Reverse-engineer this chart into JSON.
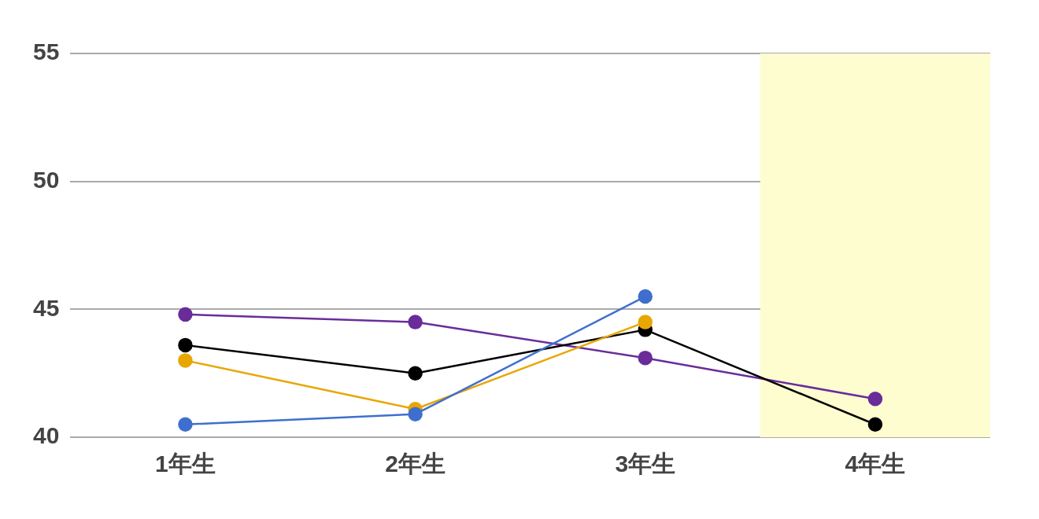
{
  "chart_data": {
    "type": "line",
    "categories": [
      "1年生",
      "2年生",
      "3年生",
      "4年生"
    ],
    "series": [
      {
        "color": "#6a2c9a",
        "values": [
          44.8,
          44.5,
          43.1,
          41.5
        ]
      },
      {
        "color": "#000000",
        "values": [
          43.6,
          42.5,
          44.2,
          40.5
        ]
      },
      {
        "color": "#e8a600",
        "values": [
          43.0,
          41.1,
          44.5,
          null
        ]
      },
      {
        "color": "#3f6fce",
        "values": [
          40.5,
          40.9,
          45.5,
          null
        ]
      }
    ],
    "ylim": [
      40,
      55
    ],
    "yticks": [
      40,
      45,
      50,
      55
    ],
    "grid": "y",
    "legend": false,
    "marker": "circle",
    "line_style": "solid",
    "bands": [
      {
        "axis": "x",
        "from": "4年生",
        "to": "4年生",
        "color": "#fdfdd0"
      }
    ]
  }
}
